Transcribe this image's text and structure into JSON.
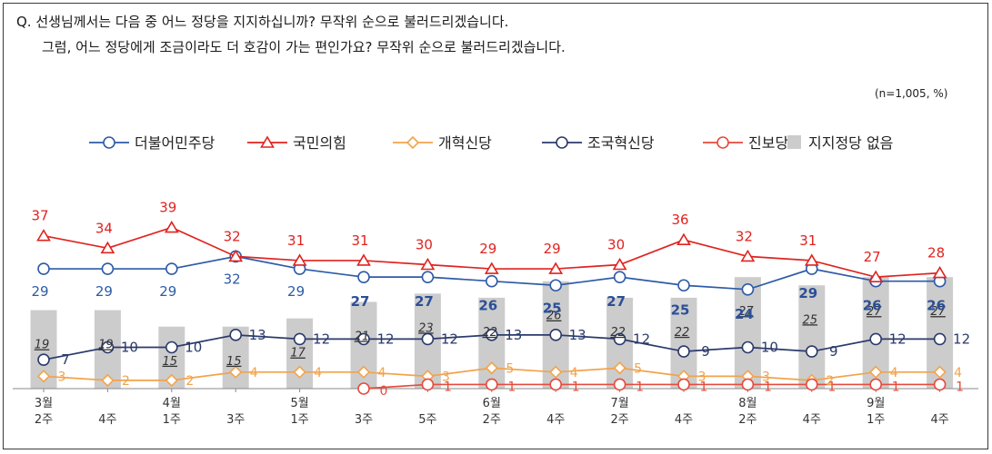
{
  "question": {
    "line1": "Q. 선생님께서는 다음 중 어느 정당을 지지하십니까? 무작위 순으로 불러드리겠습니다.",
    "line2": "그럼, 어느 정당에게 조금이라도 더 호감이 가는 편인가요? 무작위 순으로 불러드리겠습니다."
  },
  "sample_note": "(n=1,005,  %)",
  "colors": {
    "democratic": "#2e5aa8",
    "ppp": "#e0231f",
    "reform": "#f2a34a",
    "rebuild": "#2b3a6b",
    "progressive": "#e64a3b",
    "none_bar": "#cccccc",
    "axis": "#888888"
  },
  "chart_data": {
    "type": "line",
    "title": "",
    "xlabel": "",
    "ylabel": "",
    "ylim": [
      0,
      45
    ],
    "categories": [
      [
        "3월",
        "2주"
      ],
      [
        "4주"
      ],
      [
        "4월",
        "1주"
      ],
      [
        "3주"
      ],
      [
        "5월",
        "1주"
      ],
      [
        "3주"
      ],
      [
        "5주"
      ],
      [
        "6월",
        "2주"
      ],
      [
        "4주"
      ],
      [
        "7월",
        "2주"
      ],
      [
        "4주"
      ],
      [
        "8월",
        "2주"
      ],
      [
        "4주"
      ],
      [
        "9월",
        "1주"
      ],
      [
        "4주"
      ]
    ],
    "series": [
      {
        "name": "더불어민주당",
        "key": "democratic",
        "marker": "circle",
        "values": [
          29,
          29,
          29,
          32,
          29,
          27,
          27,
          26,
          25,
          27,
          25,
          24,
          29,
          26,
          26
        ]
      },
      {
        "name": "국민의힘",
        "key": "ppp",
        "marker": "triangle",
        "values": [
          37,
          34,
          39,
          32,
          31,
          31,
          30,
          29,
          29,
          30,
          36,
          32,
          31,
          27,
          28
        ]
      },
      {
        "name": "개혁신당",
        "key": "reform",
        "marker": "diamond",
        "values": [
          3,
          2,
          2,
          4,
          4,
          4,
          3,
          5,
          4,
          5,
          3,
          3,
          2,
          4,
          4
        ]
      },
      {
        "name": "조국혁신당",
        "key": "rebuild",
        "marker": "circle",
        "values": [
          7,
          10,
          10,
          13,
          12,
          12,
          12,
          13,
          13,
          12,
          9,
          10,
          9,
          12,
          12
        ]
      },
      {
        "name": "진보당",
        "key": "progressive",
        "marker": "circle",
        "start": 5,
        "values": [
          null,
          null,
          null,
          null,
          null,
          0,
          1,
          1,
          1,
          1,
          1,
          1,
          1,
          1,
          1
        ]
      }
    ],
    "bars": {
      "name": "지지정당 없음",
      "key": "none_bar",
      "values": [
        19,
        19,
        15,
        15,
        17,
        21,
        23,
        22,
        26,
        22,
        22,
        27,
        25,
        27,
        27
      ]
    }
  }
}
